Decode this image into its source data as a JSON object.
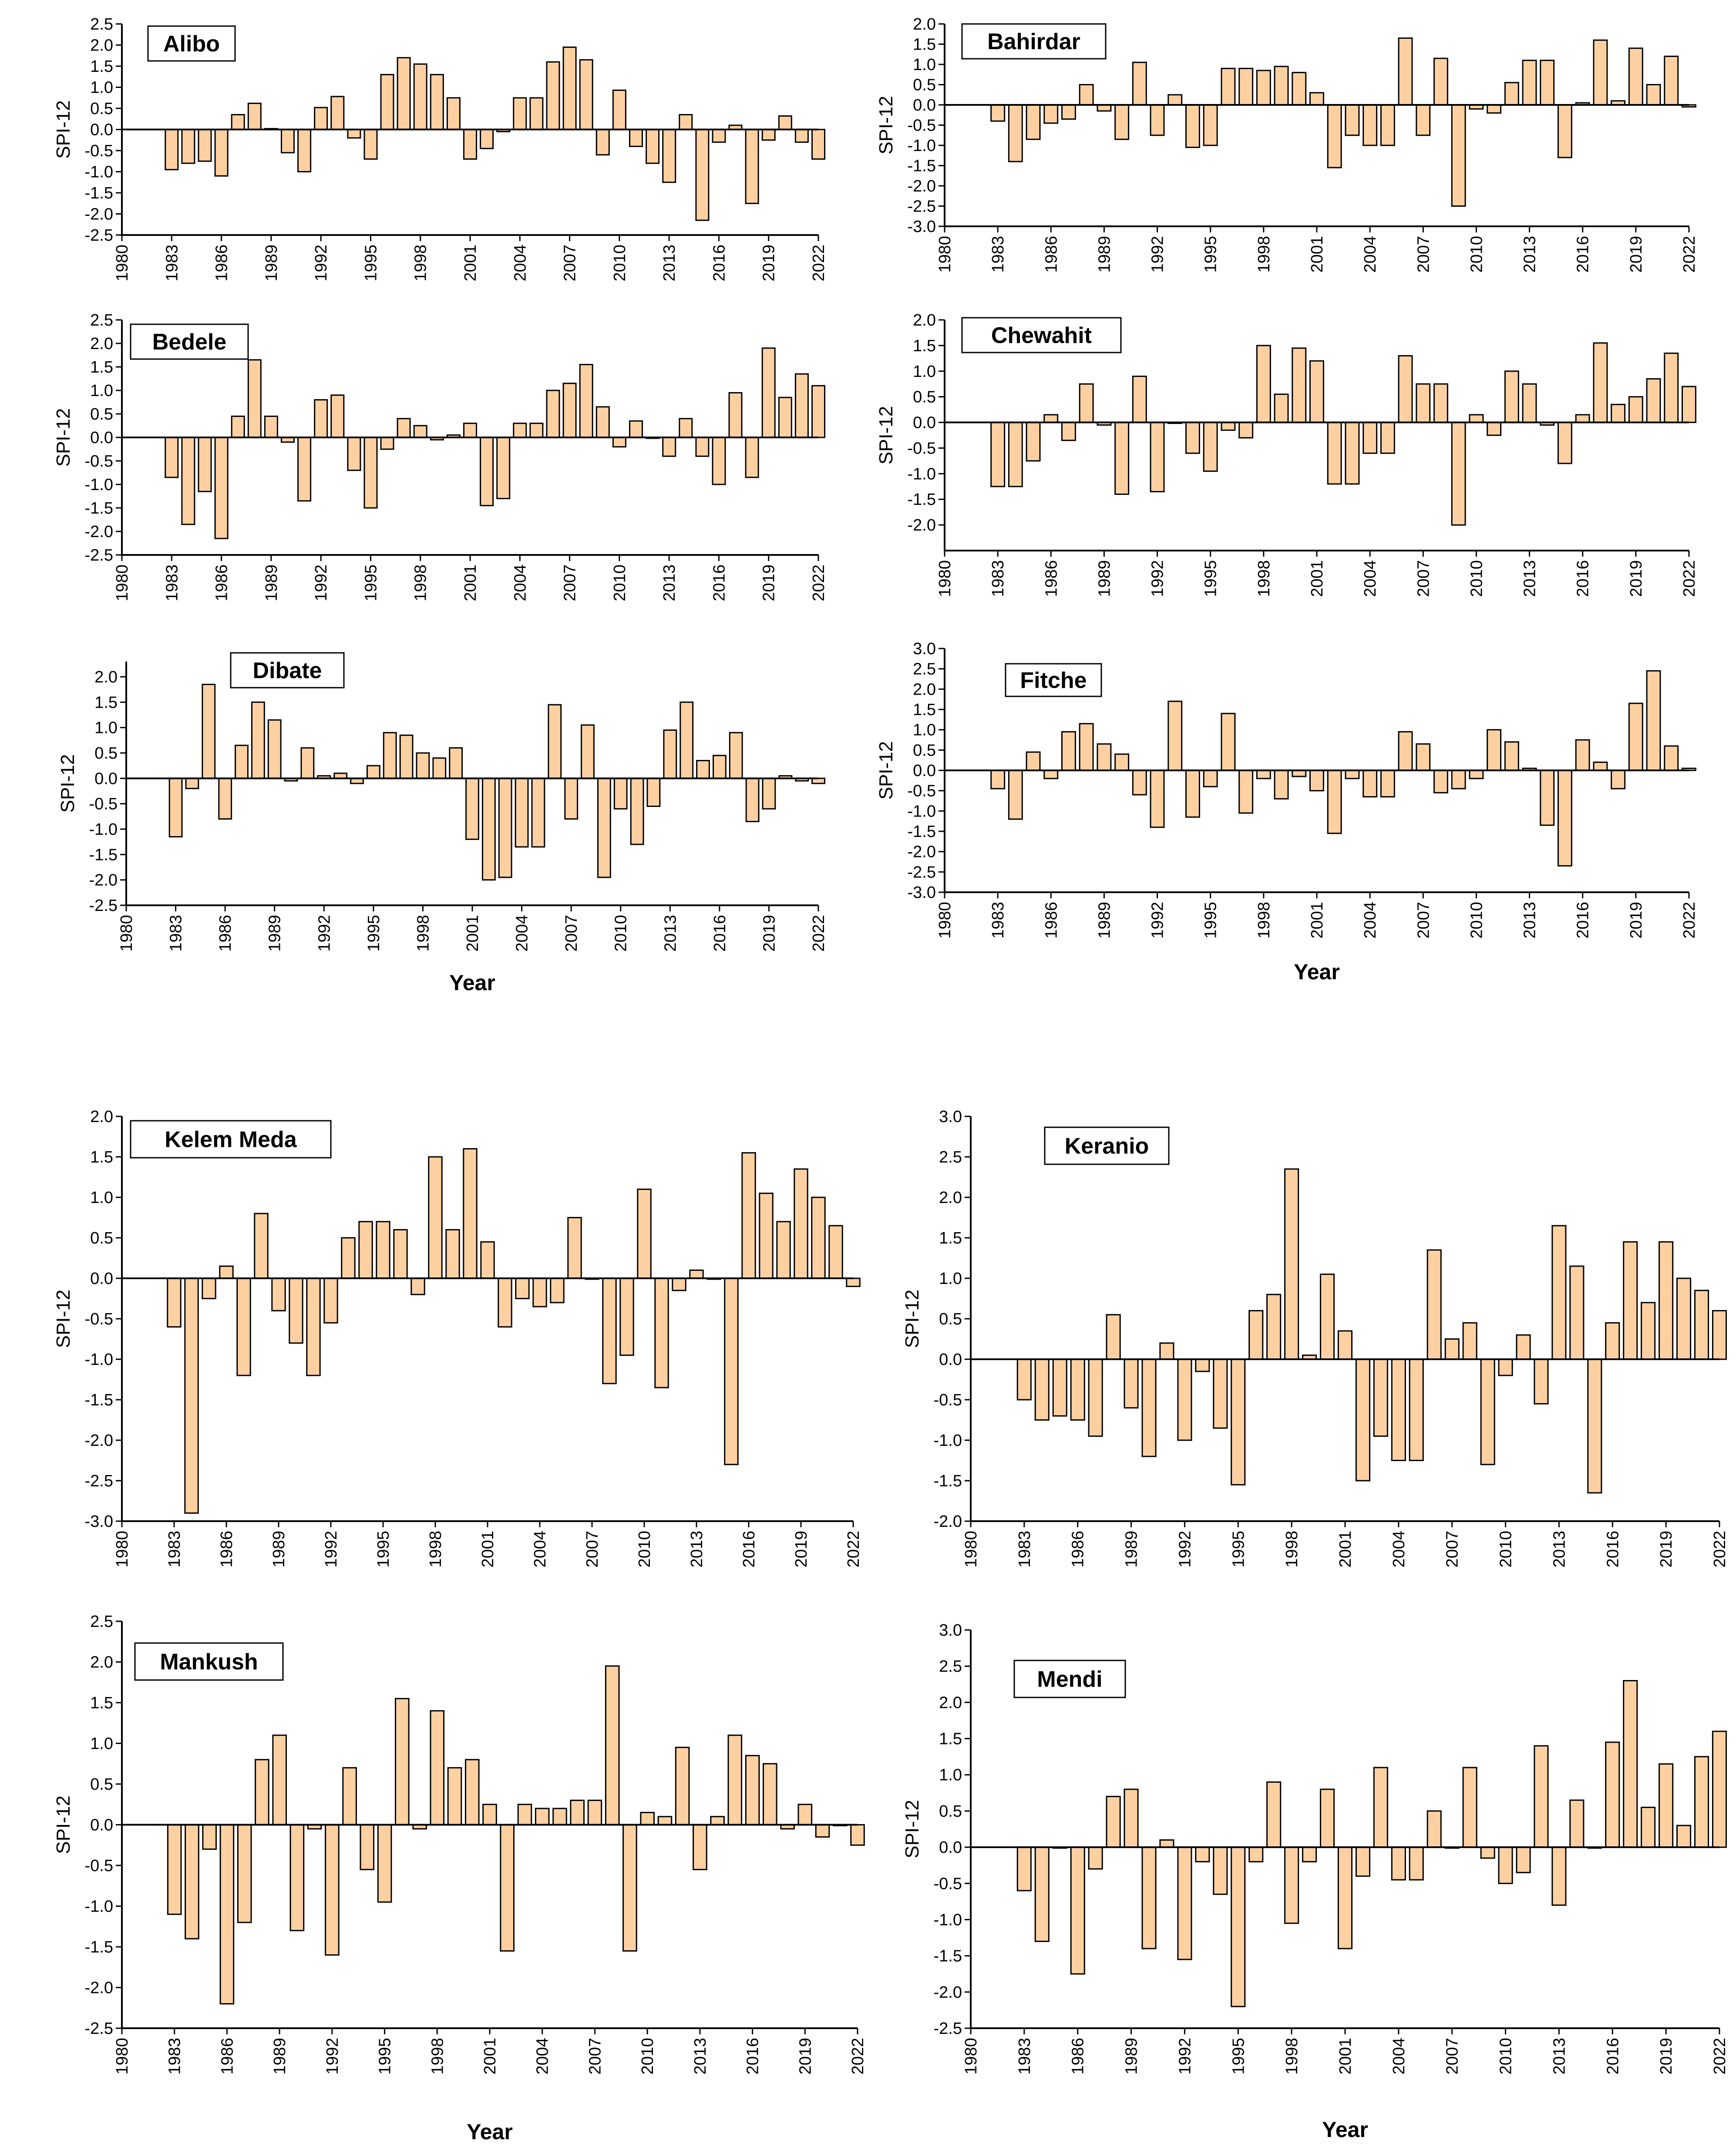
{
  "figure_caption": "",
  "x_axis_title": "Year",
  "chart_data": [
    {
      "type": "bar",
      "title": "Alibo",
      "xlabel": "",
      "ylabel": "SPI-12",
      "xlim": [
        1980,
        2022
      ],
      "ylim": [
        -2.5,
        2.5
      ],
      "y_ticks": [
        "2.5",
        "2.0",
        "1.5",
        "1.0",
        "0.5",
        "0.0",
        "-0.5",
        "-1.0",
        "-1.5",
        "-2.0",
        "-2.5"
      ],
      "x_ticks": [
        "1980",
        "1983",
        "1986",
        "1989",
        "1992",
        "1995",
        "1998",
        "2001",
        "2004",
        "2007",
        "2010",
        "2013",
        "2016",
        "2019",
        "2022"
      ],
      "x": [
        1983,
        1984,
        1985,
        1986,
        1987,
        1988,
        1989,
        1990,
        1991,
        1992,
        1993,
        1994,
        1995,
        1996,
        1997,
        1998,
        1999,
        2000,
        2001,
        2002,
        2003,
        2004,
        2005,
        2006,
        2007,
        2008,
        2009,
        2010,
        2011,
        2012,
        2013,
        2014,
        2015,
        2016,
        2017,
        2018,
        2019,
        2020,
        2021,
        2022
      ],
      "values": [
        -0.95,
        -0.8,
        -0.75,
        -1.1,
        0.35,
        0.62,
        0.02,
        -0.55,
        -1.0,
        0.52,
        0.78,
        -0.2,
        -0.7,
        1.3,
        1.7,
        1.55,
        1.3,
        0.75,
        -0.7,
        -0.45,
        -0.05,
        0.75,
        0.75,
        1.6,
        1.95,
        1.65,
        -0.6,
        0.93,
        -0.4,
        -0.8,
        -1.25,
        0.35,
        -2.15,
        -0.3,
        0.1,
        -1.75,
        -0.25,
        0.32,
        -0.3,
        -0.7
      ]
    },
    {
      "type": "bar",
      "title": "Bahirdar",
      "xlabel": "",
      "ylabel": "SPI-12",
      "xlim": [
        1980,
        2022
      ],
      "ylim": [
        -3.0,
        2.0
      ],
      "y_ticks": [
        "2.0",
        "1.5",
        "1.0",
        "0.5",
        "0.0",
        "-0.5",
        "-1.0",
        "-1.5",
        "-2.0",
        "-2.5",
        "-3.0"
      ],
      "x_ticks": [
        "1980",
        "1983",
        "1986",
        "1989",
        "1992",
        "1995",
        "1998",
        "2001",
        "2004",
        "2007",
        "2010",
        "2013",
        "2016",
        "2019",
        "2022"
      ],
      "x": [
        1983,
        1984,
        1985,
        1986,
        1987,
        1988,
        1989,
        1990,
        1991,
        1992,
        1993,
        1994,
        1995,
        1996,
        1997,
        1998,
        1999,
        2000,
        2001,
        2002,
        2003,
        2004,
        2005,
        2006,
        2007,
        2008,
        2009,
        2010,
        2011,
        2012,
        2013,
        2014,
        2015,
        2016,
        2017,
        2018,
        2019,
        2020,
        2021,
        2022
      ],
      "values": [
        -0.4,
        -1.4,
        -0.85,
        -0.45,
        -0.35,
        0.5,
        -0.15,
        -0.85,
        1.05,
        -0.75,
        0.25,
        -1.05,
        -1.0,
        0.9,
        0.9,
        0.85,
        0.95,
        0.8,
        0.3,
        -1.55,
        -0.75,
        -1.0,
        -1.0,
        1.65,
        -0.75,
        1.15,
        -2.5,
        -0.1,
        -0.2,
        0.55,
        1.1,
        1.1,
        -1.3,
        0.05,
        1.6,
        0.1,
        1.4,
        0.5,
        1.2,
        -0.05
      ]
    },
    {
      "type": "bar",
      "title": "Bedele",
      "xlabel": "",
      "ylabel": "SPI-12",
      "xlim": [
        1980,
        2022
      ],
      "ylim": [
        -2.5,
        2.5
      ],
      "y_ticks": [
        "2.5",
        "2.0",
        "1.5",
        "1.0",
        "0.5",
        "0.0",
        "-0.5",
        "-1.0",
        "-1.5",
        "-2.0",
        "-2.5"
      ],
      "x_ticks": [
        "1980",
        "1983",
        "1986",
        "1989",
        "1992",
        "1995",
        "1998",
        "2001",
        "2004",
        "2007",
        "2010",
        "2013",
        "2016",
        "2019",
        "2022"
      ],
      "x": [
        1983,
        1984,
        1985,
        1986,
        1987,
        1988,
        1989,
        1990,
        1991,
        1992,
        1993,
        1994,
        1995,
        1996,
        1997,
        1998,
        1999,
        2000,
        2001,
        2002,
        2003,
        2004,
        2005,
        2006,
        2007,
        2008,
        2009,
        2010,
        2011,
        2012,
        2013,
        2014,
        2015,
        2016,
        2017,
        2018,
        2019,
        2020,
        2021,
        2022
      ],
      "values": [
        -0.85,
        -1.85,
        -1.15,
        -2.15,
        0.45,
        1.65,
        0.45,
        -0.1,
        -1.35,
        0.8,
        0.9,
        -0.7,
        -1.5,
        -0.25,
        0.4,
        0.25,
        -0.05,
        0.05,
        0.3,
        -1.45,
        -1.3,
        0.3,
        0.3,
        1.0,
        1.15,
        1.55,
        0.65,
        -0.2,
        0.35,
        0.0,
        -0.4,
        0.4,
        -0.4,
        -1.0,
        0.95,
        -0.85,
        1.9,
        0.85,
        1.35,
        1.1
      ]
    },
    {
      "type": "bar",
      "title": "Chewahit",
      "xlabel": "",
      "ylabel": "SPI-12",
      "xlim": [
        1980,
        2022
      ],
      "ylim": [
        -2.5,
        2.0
      ],
      "y_ticks": [
        "2.0",
        "1.5",
        "1.0",
        "0.5",
        "0.0",
        "-0.5",
        "-1.0",
        "-1.5",
        "-2.0"
      ],
      "x_ticks": [
        "1980",
        "1983",
        "1986",
        "1989",
        "1992",
        "1995",
        "1998",
        "2001",
        "2004",
        "2007",
        "2010",
        "2013",
        "2016",
        "2019",
        "2022"
      ],
      "x": [
        1983,
        1984,
        1985,
        1986,
        1987,
        1988,
        1989,
        1990,
        1991,
        1992,
        1993,
        1994,
        1995,
        1996,
        1997,
        1998,
        1999,
        2000,
        2001,
        2002,
        2003,
        2004,
        2005,
        2006,
        2007,
        2008,
        2009,
        2010,
        2011,
        2012,
        2013,
        2014,
        2015,
        2016,
        2017,
        2018,
        2019,
        2020,
        2021,
        2022
      ],
      "values": [
        -1.25,
        -1.25,
        -0.75,
        0.15,
        -0.35,
        0.75,
        -0.05,
        -1.4,
        0.9,
        -1.35,
        0.0,
        -0.6,
        -0.95,
        -0.15,
        -0.3,
        1.5,
        0.55,
        1.45,
        1.2,
        -1.2,
        -1.2,
        -0.6,
        -0.6,
        1.3,
        0.75,
        0.75,
        -2.0,
        0.15,
        -0.25,
        1.0,
        0.75,
        -0.05,
        -0.8,
        0.15,
        1.55,
        0.35,
        0.5,
        0.85,
        1.35,
        0.7
      ]
    },
    {
      "type": "bar",
      "title": "Dibate",
      "xlabel": "Year",
      "ylabel": "SPI-12",
      "xlim": [
        1980,
        2022
      ],
      "ylim": [
        -2.5,
        2.3
      ],
      "y_ticks": [
        "2.0",
        "1.5",
        "1.0",
        "0.5",
        "0.0",
        "-0.5",
        "-1.0",
        "-1.5",
        "-2.0",
        "-2.5"
      ],
      "x_ticks": [
        "1980",
        "1983",
        "1986",
        "1989",
        "1992",
        "1995",
        "1998",
        "2001",
        "2004",
        "2007",
        "2010",
        "2013",
        "2016",
        "2019",
        "2022"
      ],
      "x": [
        1983,
        1984,
        1985,
        1986,
        1987,
        1988,
        1989,
        1990,
        1991,
        1992,
        1993,
        1994,
        1995,
        1996,
        1997,
        1998,
        1999,
        2000,
        2001,
        2002,
        2003,
        2004,
        2005,
        2006,
        2007,
        2008,
        2009,
        2010,
        2011,
        2012,
        2013,
        2014,
        2015,
        2016,
        2017,
        2018,
        2019,
        2020,
        2021,
        2022
      ],
      "values": [
        -1.15,
        -0.2,
        1.85,
        -0.8,
        0.65,
        1.5,
        1.15,
        -0.05,
        0.6,
        0.05,
        0.1,
        -0.1,
        0.25,
        0.9,
        0.85,
        0.5,
        0.4,
        0.6,
        -1.2,
        -2.0,
        -1.95,
        -1.35,
        -1.35,
        1.45,
        -0.8,
        1.05,
        -1.95,
        -0.6,
        -1.3,
        -0.55,
        0.95,
        1.5,
        0.35,
        0.45,
        0.9,
        -0.85,
        -0.6,
        0.05,
        -0.05,
        -0.1
      ]
    },
    {
      "type": "bar",
      "title": "Fitche",
      "xlabel": "Year",
      "ylabel": "SPI-12",
      "xlim": [
        1980,
        2022
      ],
      "ylim": [
        -3.0,
        3.0
      ],
      "y_ticks": [
        "3.0",
        "2.5",
        "2.0",
        "1.5",
        "1.0",
        "0.5",
        "0.0",
        "-0.5",
        "-1.0",
        "-1.5",
        "-2.0",
        "-2.5",
        "-3.0"
      ],
      "x_ticks": [
        "1980",
        "1983",
        "1986",
        "1989",
        "1992",
        "1995",
        "1998",
        "2001",
        "2004",
        "2007",
        "2010",
        "2013",
        "2016",
        "2019",
        "2022"
      ],
      "x": [
        1983,
        1984,
        1985,
        1986,
        1987,
        1988,
        1989,
        1990,
        1991,
        1992,
        1993,
        1994,
        1995,
        1996,
        1997,
        1998,
        1999,
        2000,
        2001,
        2002,
        2003,
        2004,
        2005,
        2006,
        2007,
        2008,
        2009,
        2010,
        2011,
        2012,
        2013,
        2014,
        2015,
        2016,
        2017,
        2018,
        2019,
        2020,
        2021,
        2022
      ],
      "values": [
        -0.45,
        -1.2,
        0.45,
        -0.2,
        0.95,
        1.15,
        0.65,
        0.4,
        -0.6,
        -1.4,
        1.7,
        -1.15,
        -0.4,
        1.4,
        -1.05,
        -0.2,
        -0.7,
        -0.15,
        -0.5,
        -1.55,
        -0.2,
        -0.65,
        -0.65,
        0.95,
        0.65,
        -0.55,
        -0.45,
        -0.2,
        1.0,
        0.7,
        0.05,
        -1.35,
        -2.35,
        0.75,
        0.2,
        -0.45,
        1.65,
        2.45,
        0.6,
        0.05
      ]
    },
    {
      "type": "bar",
      "title": "Kelem Meda",
      "xlabel": "",
      "ylabel": "SPI-12",
      "xlim": [
        1980,
        2022
      ],
      "ylim": [
        -3.0,
        2.0
      ],
      "y_ticks": [
        "2.0",
        "1.5",
        "1.0",
        "0.5",
        "0.0",
        "-0.5",
        "-1.0",
        "-1.5",
        "-2.0",
        "-2.5",
        "-3.0"
      ],
      "x_ticks": [
        "1980",
        "1983",
        "1986",
        "1989",
        "1992",
        "1995",
        "1998",
        "2001",
        "2004",
        "2007",
        "2010",
        "2013",
        "2016",
        "2019",
        "2022"
      ],
      "x": [
        1983,
        1984,
        1985,
        1986,
        1987,
        1988,
        1989,
        1990,
        1991,
        1992,
        1993,
        1994,
        1995,
        1996,
        1997,
        1998,
        1999,
        2000,
        2001,
        2002,
        2003,
        2004,
        2005,
        2006,
        2007,
        2008,
        2009,
        2010,
        2011,
        2012,
        2013,
        2014,
        2015,
        2016,
        2017,
        2018,
        2019,
        2020,
        2021,
        2022
      ],
      "values": [
        -0.6,
        -2.9,
        -0.25,
        0.15,
        -1.2,
        0.8,
        -0.4,
        -0.8,
        -1.2,
        -0.55,
        0.5,
        0.7,
        0.7,
        0.6,
        -0.2,
        1.5,
        0.6,
        1.6,
        0.45,
        -0.6,
        -0.25,
        -0.35,
        -0.3,
        0.75,
        0.0,
        -1.3,
        -0.95,
        1.1,
        -1.35,
        -0.15,
        0.1,
        0.0,
        -2.3,
        1.55,
        1.05,
        0.7,
        1.35,
        1.0,
        0.65,
        -0.1
      ]
    },
    {
      "type": "bar",
      "title": "Keranio",
      "xlabel": "",
      "ylabel": "SPI-12",
      "xlim": [
        1980,
        2022
      ],
      "ylim": [
        -2.0,
        3.0
      ],
      "y_ticks": [
        "3.0",
        "2.5",
        "2.0",
        "1.5",
        "1.0",
        "0.5",
        "0.0",
        "-0.5",
        "-1.0",
        "-1.5",
        "-2.0"
      ],
      "x_ticks": [
        "1980",
        "1983",
        "1986",
        "1989",
        "1992",
        "1995",
        "1998",
        "2001",
        "2004",
        "2007",
        "2010",
        "2013",
        "2016",
        "2019",
        "2022"
      ],
      "x": [
        1983,
        1984,
        1985,
        1986,
        1987,
        1988,
        1989,
        1990,
        1991,
        1992,
        1993,
        1994,
        1995,
        1996,
        1997,
        1998,
        1999,
        2000,
        2001,
        2002,
        2003,
        2004,
        2005,
        2006,
        2007,
        2008,
        2009,
        2010,
        2011,
        2012,
        2013,
        2014,
        2015,
        2016,
        2017,
        2018,
        2019,
        2020,
        2021,
        2022
      ],
      "values": [
        -0.5,
        -0.75,
        -0.7,
        -0.75,
        -0.95,
        0.55,
        -0.6,
        -1.2,
        0.2,
        -1.0,
        -0.15,
        -0.85,
        -1.55,
        0.6,
        0.8,
        2.35,
        0.05,
        1.05,
        0.35,
        -1.5,
        -0.95,
        -1.25,
        -1.25,
        1.35,
        0.25,
        0.45,
        -1.3,
        -0.2,
        0.3,
        -0.55,
        1.65,
        1.15,
        -1.65,
        0.45,
        1.45,
        0.7,
        1.45,
        1.0,
        0.85,
        0.6
      ]
    },
    {
      "type": "bar",
      "title": "Mankush",
      "xlabel": "Year",
      "ylabel": "SPI-12",
      "xlim": [
        1980,
        2022
      ],
      "ylim": [
        -2.5,
        2.5
      ],
      "y_ticks": [
        "2.5",
        "2.0",
        "1.5",
        "1.0",
        "0.5",
        "0.0",
        "-0.5",
        "-1.0",
        "-1.5",
        "-2.0",
        "-2.5"
      ],
      "x_ticks": [
        "1980",
        "1983",
        "1986",
        "1989",
        "1992",
        "1995",
        "1998",
        "2001",
        "2004",
        "2007",
        "2010",
        "2013",
        "2016",
        "2019",
        "2022"
      ],
      "x": [
        1983,
        1984,
        1985,
        1986,
        1987,
        1988,
        1989,
        1990,
        1991,
        1992,
        1993,
        1994,
        1995,
        1996,
        1997,
        1998,
        1999,
        2000,
        2001,
        2002,
        2003,
        2004,
        2005,
        2006,
        2007,
        2008,
        2009,
        2010,
        2011,
        2012,
        2013,
        2014,
        2015,
        2016,
        2017,
        2018,
        2019,
        2020,
        2021,
        2022
      ],
      "values": [
        -1.1,
        -1.4,
        -0.3,
        -2.2,
        -1.2,
        0.8,
        1.1,
        -1.3,
        -0.05,
        -1.6,
        0.7,
        -0.55,
        -0.95,
        1.55,
        -0.05,
        1.4,
        0.7,
        0.8,
        0.25,
        -1.55,
        0.25,
        0.2,
        0.2,
        0.3,
        0.3,
        1.95,
        -1.55,
        0.15,
        0.1,
        0.95,
        -0.55,
        0.1,
        1.1,
        0.85,
        0.75,
        -0.05,
        0.25,
        -0.15,
        0.0,
        -0.25
      ]
    },
    {
      "type": "bar",
      "title": "Mendi",
      "xlabel": "Year",
      "ylabel": "SPI-12",
      "xlim": [
        1980,
        2022
      ],
      "ylim": [
        -2.5,
        3.0
      ],
      "y_ticks": [
        "3.0",
        "2.5",
        "2.0",
        "1.5",
        "1.0",
        "0.5",
        "0.0",
        "-0.5",
        "-1.0",
        "-1.5",
        "-2.0",
        "-2.5"
      ],
      "x_ticks": [
        "1980",
        "1983",
        "1986",
        "1989",
        "1992",
        "1995",
        "1998",
        "2001",
        "2004",
        "2007",
        "2010",
        "2013",
        "2016",
        "2019",
        "2022"
      ],
      "x": [
        1983,
        1984,
        1985,
        1986,
        1987,
        1988,
        1989,
        1990,
        1991,
        1992,
        1993,
        1994,
        1995,
        1996,
        1997,
        1998,
        1999,
        2000,
        2001,
        2002,
        2003,
        2004,
        2005,
        2006,
        2007,
        2008,
        2009,
        2010,
        2011,
        2012,
        2013,
        2014,
        2015,
        2016,
        2017,
        2018,
        2019,
        2020,
        2021,
        2022
      ],
      "values": [
        -0.6,
        -1.3,
        0.0,
        -1.75,
        -0.3,
        0.7,
        0.8,
        -1.4,
        0.1,
        -1.55,
        -0.2,
        -0.65,
        -2.2,
        -0.2,
        0.9,
        -1.05,
        -0.2,
        0.8,
        -1.4,
        -0.4,
        1.1,
        -0.45,
        -0.45,
        0.5,
        0.0,
        1.1,
        -0.15,
        -0.5,
        -0.35,
        1.4,
        -0.8,
        0.65,
        0.0,
        1.45,
        2.3,
        0.55,
        1.15,
        0.3,
        1.25,
        1.6
      ]
    }
  ]
}
